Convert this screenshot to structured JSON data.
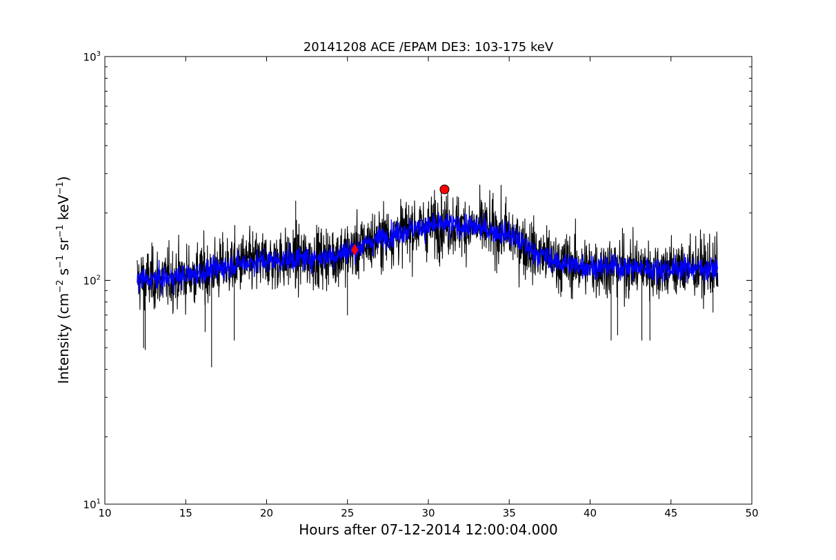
{
  "chart_data": {
    "type": "line",
    "title": "20141208 ACE /EPAM DE3: 103-175 keV",
    "xlabel": "Hours after 07-12-2014 12:00:04.000",
    "ylabel": {
      "main": "Intensity (cm",
      "exp1": "−2",
      "s": " s",
      "exp2": "−1",
      "sr": " sr",
      "exp3": "−1",
      "kev": " keV",
      "exp4": "−1",
      "end": ")"
    },
    "xlim": [
      10,
      50
    ],
    "ylim": [
      10,
      1000
    ],
    "yscale": "log",
    "grid": false,
    "xticks": [
      10,
      15,
      20,
      25,
      30,
      35,
      40,
      45,
      50
    ],
    "xtick_labels": [
      "10",
      "15",
      "20",
      "25",
      "30",
      "35",
      "40",
      "45",
      "50"
    ],
    "yticks": [
      10,
      100,
      1000
    ],
    "ytick_labels": [
      {
        "base": "10",
        "exp": "1"
      },
      {
        "base": "10",
        "exp": "2"
      },
      {
        "base": "10",
        "exp": "3"
      }
    ],
    "series": [
      {
        "role": "raw",
        "color": "#000000",
        "x_start": 12.0,
        "x_end": 47.9,
        "trend": [
          [
            12.0,
            100
          ],
          [
            14.0,
            102
          ],
          [
            16.0,
            108
          ],
          [
            18.0,
            118
          ],
          [
            20.0,
            122
          ],
          [
            22.0,
            125
          ],
          [
            24.0,
            128
          ],
          [
            25.5,
            138
          ],
          [
            27.0,
            155
          ],
          [
            29.0,
            170
          ],
          [
            31.0,
            178
          ],
          [
            33.0,
            172
          ],
          [
            35.0,
            160
          ],
          [
            36.5,
            135
          ],
          [
            38.0,
            120
          ],
          [
            40.0,
            115
          ],
          [
            42.0,
            115
          ],
          [
            44.0,
            112
          ],
          [
            46.0,
            114
          ],
          [
            47.9,
            112
          ]
        ],
        "spikes": [
          [
            12.4,
            50
          ],
          [
            12.5,
            49
          ],
          [
            16.6,
            41
          ],
          [
            18.0,
            54
          ],
          [
            16.2,
            59
          ],
          [
            21.8,
            226
          ],
          [
            25.0,
            70
          ],
          [
            30.8,
            252
          ],
          [
            31.2,
            245
          ],
          [
            34.8,
            236
          ],
          [
            41.3,
            54
          ],
          [
            41.7,
            57
          ],
          [
            43.2,
            54
          ],
          [
            43.7,
            54
          ],
          [
            47.6,
            72
          ]
        ]
      },
      {
        "role": "smoothed",
        "color": "#0000ff",
        "x_start": 12.0,
        "x_end": 47.9,
        "trend": [
          [
            12.0,
            100
          ],
          [
            14.0,
            102
          ],
          [
            16.0,
            108
          ],
          [
            18.0,
            118
          ],
          [
            20.0,
            122
          ],
          [
            22.0,
            125
          ],
          [
            24.0,
            128
          ],
          [
            25.5,
            138
          ],
          [
            27.0,
            155
          ],
          [
            29.0,
            170
          ],
          [
            31.0,
            178
          ],
          [
            33.0,
            172
          ],
          [
            35.0,
            160
          ],
          [
            36.5,
            135
          ],
          [
            38.0,
            120
          ],
          [
            40.0,
            115
          ],
          [
            42.0,
            115
          ],
          [
            44.0,
            112
          ],
          [
            46.0,
            114
          ],
          [
            47.9,
            112
          ]
        ]
      }
    ],
    "markers": [
      {
        "shape": "diamond",
        "x": 25.45,
        "y": 137,
        "color": "#ff0000"
      },
      {
        "shape": "circle",
        "x": 31.0,
        "y": 255,
        "color": "#ff0000"
      }
    ]
  }
}
